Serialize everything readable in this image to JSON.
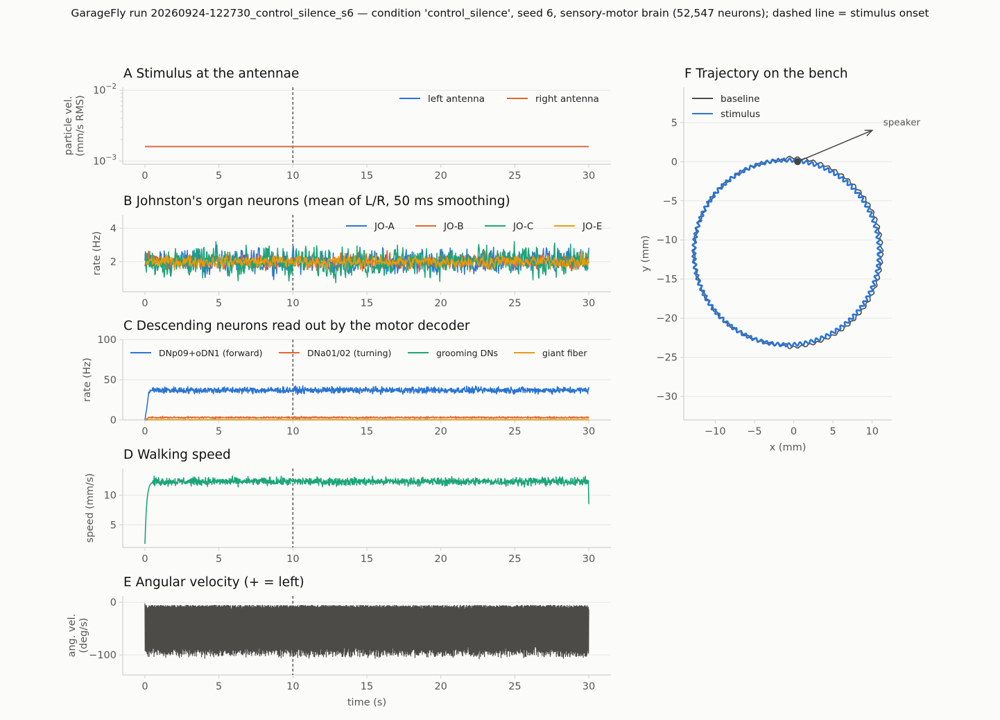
{
  "suptitle": "GarageFly run 20260924-122730_control_silence_s6 — condition 'control_silence', seed 6, sensory-motor brain (52,547 neurons); dashed line = stimulus onset",
  "colors": {
    "blue": "#2a74d4",
    "orange": "#e5642f",
    "green": "#1ba57a",
    "gold": "#e99a0c",
    "dark": "#4d4b48",
    "grid": "#e6e6e3",
    "axis": "#cfcfcc",
    "tick": "#555555"
  },
  "chart_data": [
    {
      "id": "A",
      "type": "line",
      "title": "A  Stimulus at the antennae",
      "xlabel": "",
      "ylabel": "particle vel.\n(mm/s RMS)",
      "yscale": "log",
      "xlim": [
        -1.5,
        31.5
      ],
      "ylim": [
        0.0009,
        0.011
      ],
      "xticks": [
        0,
        5,
        10,
        15,
        20,
        25,
        30
      ],
      "yticks": [
        {
          "value": 0.01,
          "label": "10^-2"
        },
        {
          "value": 0.001,
          "label": "10^-3"
        }
      ],
      "stimulus_onset": 10,
      "legend_position": "upper-right",
      "series": [
        {
          "name": "left antenna",
          "color": "#2a74d4",
          "x": [
            0,
            30
          ],
          "y": [
            0.0016,
            0.0016
          ]
        },
        {
          "name": "right antenna",
          "color": "#e5642f",
          "x": [
            0,
            30
          ],
          "y": [
            0.0016,
            0.0016
          ]
        }
      ]
    },
    {
      "id": "B",
      "type": "line",
      "title": "B  Johnston's organ neurons (mean of L/R, 50 ms smoothing)",
      "xlabel": "",
      "ylabel": "rate (Hz)",
      "xlim": [
        -1.5,
        31.5
      ],
      "ylim": [
        0.2,
        4.8
      ],
      "xticks": [
        0,
        5,
        10,
        15,
        20,
        25,
        30
      ],
      "yticks": [
        2,
        4
      ],
      "stimulus_onset": 10,
      "legend_position": "upper-right",
      "series": [
        {
          "name": "JO-A",
          "color": "#2a74d4",
          "mean": 2.0,
          "amplitude": 1.0
        },
        {
          "name": "JO-B",
          "color": "#e5642f",
          "mean": 2.0,
          "amplitude": 0.7
        },
        {
          "name": "JO-C",
          "color": "#1ba57a",
          "mean": 2.0,
          "amplitude": 1.2
        },
        {
          "name": "JO-E",
          "color": "#e99a0c",
          "mean": 2.0,
          "amplitude": 0.5
        }
      ]
    },
    {
      "id": "C",
      "type": "line",
      "title": "C  Descending neurons read out by the motor decoder",
      "xlabel": "",
      "ylabel": "rate (Hz)",
      "xlim": [
        -1.5,
        31.5
      ],
      "ylim": [
        0,
        100
      ],
      "xticks": [
        0,
        5,
        10,
        15,
        20,
        25,
        30
      ],
      "yticks": [
        0,
        50,
        100
      ],
      "stimulus_onset": 10,
      "legend_position": "upper",
      "series": [
        {
          "name": "DNp09+oDN1 (forward)",
          "color": "#2a74d4",
          "mean": 37,
          "amplitude": 6
        },
        {
          "name": "DNa01/02 (turning)",
          "color": "#e5642f",
          "mean": 3,
          "amplitude": 1.5
        },
        {
          "name": "grooming DNs",
          "color": "#1ba57a",
          "mean": 0.3,
          "amplitude": 0.2
        },
        {
          "name": "giant fiber",
          "color": "#e99a0c",
          "mean": 0.2,
          "amplitude": 0.1
        }
      ]
    },
    {
      "id": "D",
      "type": "line",
      "title": "D  Walking speed",
      "xlabel": "",
      "ylabel": "speed (mm/s)",
      "xlim": [
        -1.5,
        31.5
      ],
      "ylim": [
        1.2,
        14.5
      ],
      "xticks": [
        0,
        5,
        10,
        15,
        20,
        25,
        30
      ],
      "yticks": [
        5,
        10
      ],
      "stimulus_onset": 10,
      "series": [
        {
          "name": "",
          "color": "#1ba57a",
          "start": 1.8,
          "plateau": 12.3,
          "amplitude": 1.0,
          "end": 8.5
        }
      ]
    },
    {
      "id": "E",
      "type": "line",
      "title": "E  Angular velocity (+ = left)",
      "xlabel": "time (s)",
      "ylabel": "ang. vel.\n(deg/s)",
      "xlim": [
        -1.5,
        31.5
      ],
      "ylim": [
        -138,
        12
      ],
      "xticks": [
        0,
        5,
        10,
        15,
        20,
        25,
        30
      ],
      "yticks": [
        0,
        -100
      ],
      "stimulus_onset": 10,
      "series": [
        {
          "name": "",
          "color": "#4d4b48",
          "upper": -5,
          "lower": -95
        }
      ]
    },
    {
      "id": "F",
      "type": "line",
      "title": "F  Trajectory on the bench",
      "xlabel": "x (mm)",
      "ylabel": "y (mm)",
      "xlim": [
        -14,
        12.5
      ],
      "ylim": [
        -33,
        9.5
      ],
      "xticks": [
        -10,
        -5,
        0,
        5,
        10
      ],
      "yticks": [
        5,
        0,
        -5,
        -10,
        -15,
        -20,
        -25,
        -30
      ],
      "legend_position": "upper-left",
      "circle": {
        "center_x": -0.9,
        "center_y": -11.6,
        "radius": 11.8
      },
      "start_point": {
        "x": 0.5,
        "y": 0
      },
      "annotation": {
        "text": "speaker",
        "arrow_to": {
          "x": 10,
          "y": 4.0
        }
      },
      "series": [
        {
          "name": "baseline",
          "color": "#4d4b48"
        },
        {
          "name": "stimulus",
          "color": "#2a74d4"
        }
      ]
    }
  ]
}
